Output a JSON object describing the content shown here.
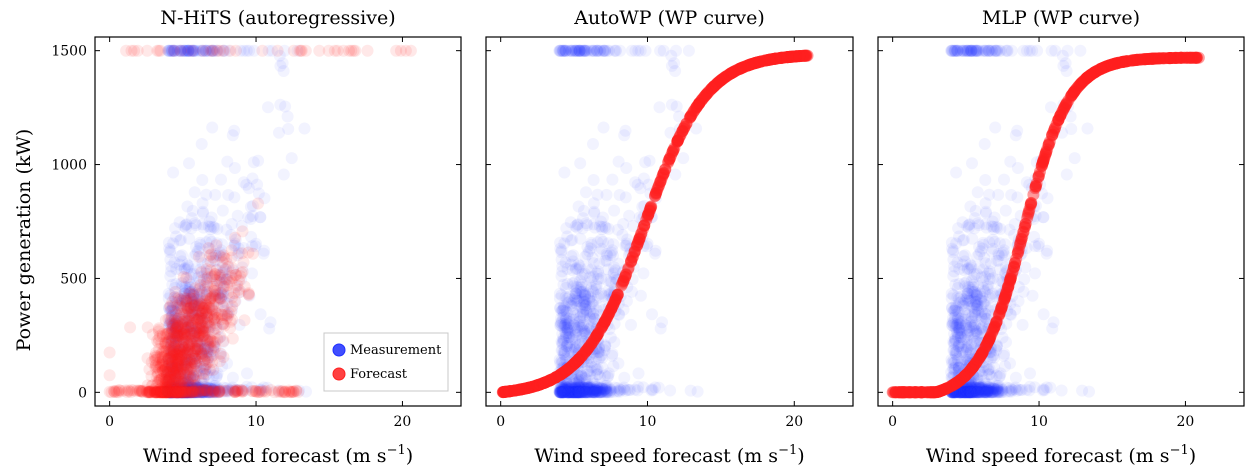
{
  "figure": {
    "ylabel": "Power generation (kW)",
    "xlabel_main": "Wind speed forecast (m s",
    "xlabel_sup": "−1",
    "xlabel_close": ")"
  },
  "legend": {
    "items": [
      {
        "label": "Measurement",
        "color": "#1f2fff"
      },
      {
        "label": "Forecast",
        "color": "#ff2020"
      }
    ]
  },
  "chart_data": [
    {
      "type": "scatter",
      "title": "N-HiTS (autoregressive)",
      "xlim": [
        -1,
        24
      ],
      "ylim": [
        -60,
        1560
      ],
      "xticks": [
        0,
        10,
        20
      ],
      "yticks": [
        0,
        500,
        1000,
        1500
      ],
      "series": [
        {
          "name": "Measurement",
          "color": "#1f2fff",
          "pattern": "measured power scatter, 0–1500 kW over 0–21 m/s wind"
        },
        {
          "name": "Forecast",
          "color": "#ff2020",
          "pattern": "autoregressive scatter, dense band rising from ~0 kW at 3 m/s to ~1000 kW at 12 m/s"
        }
      ]
    },
    {
      "type": "scatter",
      "title": "AutoWP (WP curve)",
      "xlim": [
        -1,
        24
      ],
      "ylim": [
        -60,
        1560
      ],
      "xticks": [
        0,
        10,
        20
      ],
      "yticks": [
        0,
        500,
        1000,
        1500
      ],
      "series": [
        {
          "name": "Measurement",
          "color": "#1f2fff",
          "pattern": "measured power scatter, 0–1500 kW over 0–21 m/s wind"
        },
        {
          "name": "Forecast",
          "color": "#ff2020",
          "pattern": "smooth S-shaped power curve, 0 kW below ~3 m/s, saturating at 1500 kW near 16 m/s"
        }
      ]
    },
    {
      "type": "scatter",
      "title": "MLP (WP curve)",
      "xlim": [
        -1,
        24
      ],
      "ylim": [
        -60,
        1560
      ],
      "xticks": [
        0,
        10,
        20
      ],
      "yticks": [
        0,
        500,
        1000,
        1500
      ],
      "series": [
        {
          "name": "Measurement",
          "color": "#1f2fff",
          "pattern": "measured power scatter, 0–1500 kW over 0–21 m/s wind"
        },
        {
          "name": "Forecast",
          "color": "#ff2020",
          "pattern": "steeper power curve, 0 kW below ~3 m/s, reaching 1500 kW at ~13 m/s and flat beyond"
        }
      ]
    }
  ]
}
